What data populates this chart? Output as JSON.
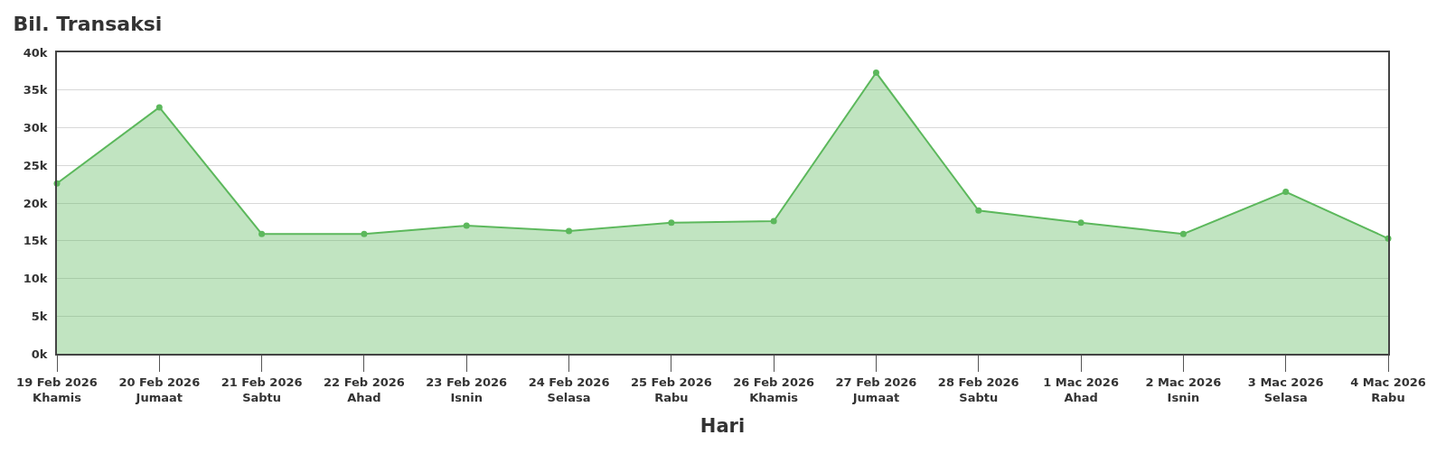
{
  "chart_data": {
    "type": "area",
    "title": "Bil. Transaksi",
    "xlabel": "Hari",
    "categories": [
      "19 Feb 2026\nKhamis",
      "20 Feb 2026\nJumaat",
      "21 Feb 2026\nSabtu",
      "22 Feb 2026\nAhad",
      "23 Feb 2026\nIsnin",
      "24 Feb 2026\nSelasa",
      "25 Feb 2026\nRabu",
      "26 Feb 2026\nKhamis",
      "27 Feb 2026\nJumaat",
      "28 Feb 2026\nSabtu",
      "1 Mac 2026\nAhad",
      "2 Mac 2026\nIsnin",
      "3 Mac 2026\nSelasa",
      "4 Mac 2026\nRabu"
    ],
    "series": [
      {
        "color": "#5cb85c",
        "values": [
          22600,
          32700,
          15900,
          15900,
          17000,
          16300,
          17400,
          17600,
          37300,
          19000,
          17400,
          15900,
          21500,
          15300
        ]
      }
    ],
    "ylim": [
      0,
      40000
    ],
    "yticks": [
      {
        "value": 0,
        "label": "0k"
      },
      {
        "value": 5000,
        "label": "5k"
      },
      {
        "value": 10000,
        "label": "10k"
      },
      {
        "value": 15000,
        "label": "15k"
      },
      {
        "value": 20000,
        "label": "20k"
      },
      {
        "value": 25000,
        "label": "25k"
      },
      {
        "value": 30000,
        "label": "30k"
      },
      {
        "value": 35000,
        "label": "35k"
      },
      {
        "value": 40000,
        "label": "40k"
      }
    ],
    "grid": "y",
    "legend": false,
    "marker": "circle",
    "line_style": "solid"
  }
}
